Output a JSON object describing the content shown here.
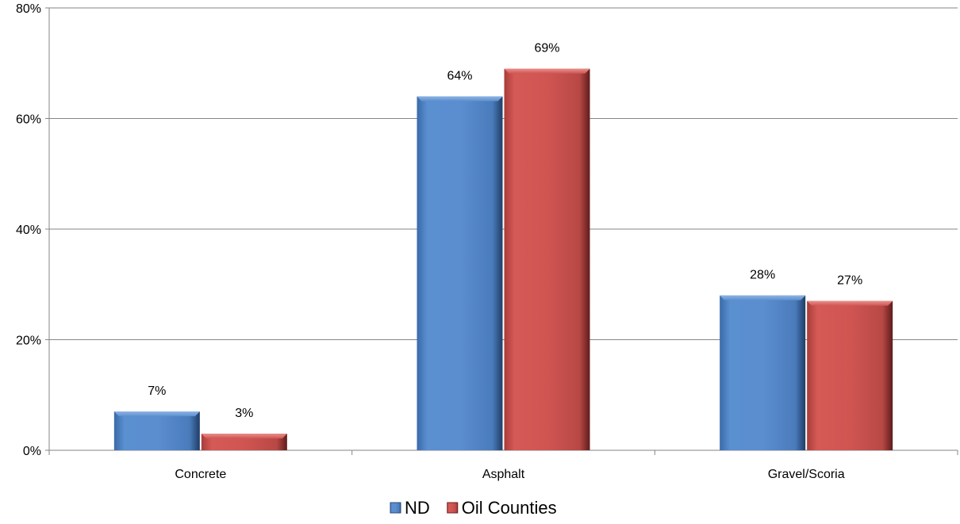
{
  "chart_data": {
    "type": "bar",
    "title": "",
    "xlabel": "",
    "ylabel": "",
    "categories": [
      "Concrete",
      "Asphalt",
      "Gravel/Scoria"
    ],
    "series": [
      {
        "name": "ND",
        "values": [
          7,
          64,
          28
        ],
        "labels": [
          "7%",
          "64%",
          "28%"
        ],
        "color": "#4F81BD"
      },
      {
        "name": "Oil Counties",
        "values": [
          3,
          69,
          27
        ],
        "labels": [
          "3%",
          "69%",
          "27%"
        ],
        "color": "#C0504D"
      }
    ],
    "ylim": [
      0,
      80
    ],
    "yticks": [
      0,
      20,
      40,
      60,
      80
    ],
    "ytick_labels": [
      "0%",
      "20%",
      "40%",
      "60%",
      "80%"
    ],
    "grid": true,
    "legend_position": "bottom"
  }
}
